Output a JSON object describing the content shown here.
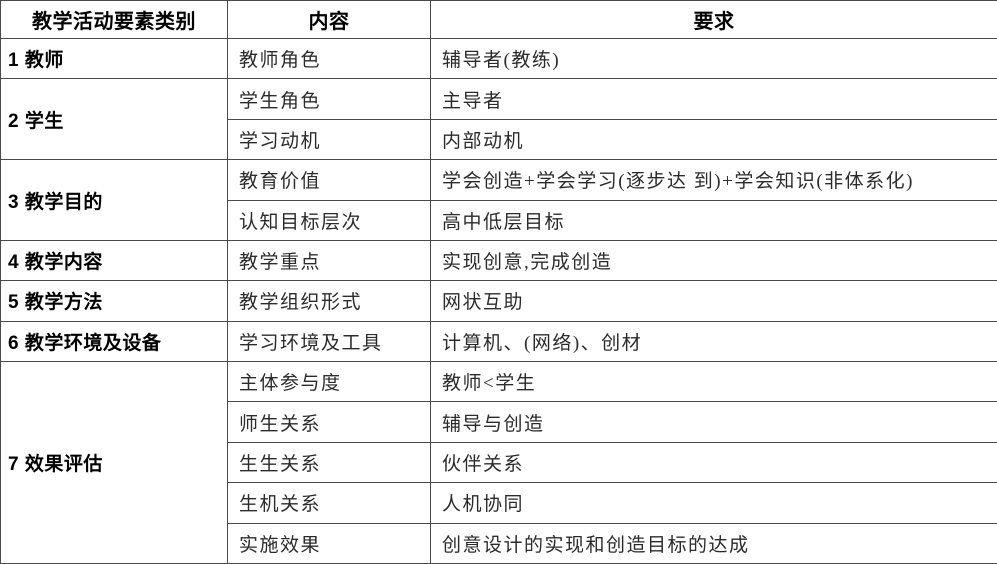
{
  "page": {
    "background_color": "#ffffff",
    "border_color": "#4a4a4a",
    "text_color": "#000000"
  },
  "table": {
    "headers": [
      "教学活动要素类别",
      "内容",
      "要求"
    ],
    "groups": [
      {
        "category": "1 教师",
        "rows": [
          {
            "content": "教师角色",
            "requirement": "辅导者(教练)"
          }
        ]
      },
      {
        "category": "2 学生",
        "rows": [
          {
            "content": "学生角色",
            "requirement": "主导者"
          },
          {
            "content": "学习动机",
            "requirement": "内部动机"
          }
        ]
      },
      {
        "category": "3 教学目的",
        "rows": [
          {
            "content": "教育价值",
            "requirement": "学会创造+学会学习(逐步达 到)+学会知识(非体系化)"
          },
          {
            "content": "认知目标层次",
            "requirement": "高中低层目标"
          }
        ]
      },
      {
        "category": "4 教学内容",
        "rows": [
          {
            "content": "教学重点",
            "requirement": "实现创意,完成创造"
          }
        ]
      },
      {
        "category": "5 教学方法",
        "rows": [
          {
            "content": "教学组织形式",
            "requirement": "网状互助"
          }
        ]
      },
      {
        "category": "6 教学环境及设备",
        "rows": [
          {
            "content": "学习环境及工具",
            "requirement": "计算机、(网络)、创材"
          }
        ]
      },
      {
        "category": "7 效果评估",
        "rows": [
          {
            "content": "主体参与度",
            "requirement": "教师<学生"
          },
          {
            "content": "师生关系",
            "requirement": "辅导与创造"
          },
          {
            "content": "生生关系",
            "requirement": "伙伴关系"
          },
          {
            "content": "生机关系",
            "requirement": "人机协同"
          },
          {
            "content": "实施效果",
            "requirement": "创意设计的实现和创造目标的达成"
          }
        ]
      }
    ]
  }
}
